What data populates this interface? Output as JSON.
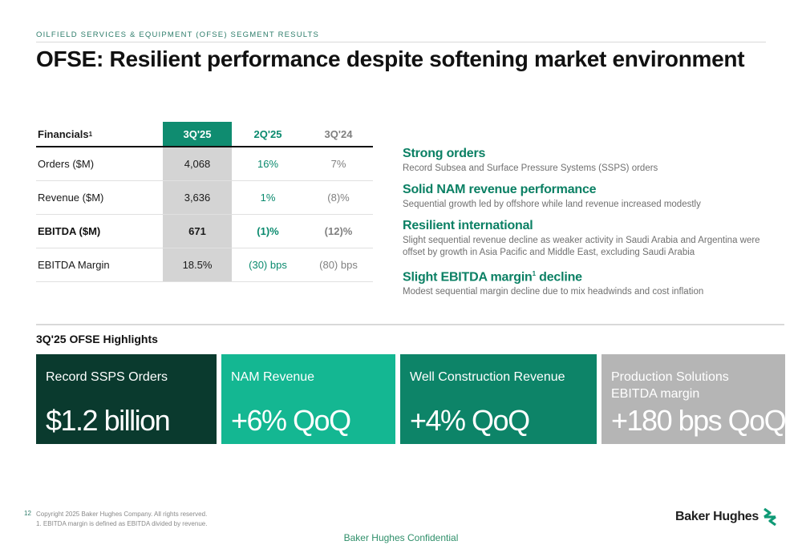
{
  "header": {
    "kicker": "OILFIELD SERVICES & EQUIPMENT (OFSE) SEGMENT RESULTS",
    "title": "OFSE: Resilient performance despite softening market environment"
  },
  "financials": {
    "header": {
      "label": "Financials",
      "label_sup": "1",
      "q1": "3Q'25",
      "q2": "2Q'25",
      "q3": "3Q'24"
    },
    "rows": [
      {
        "label": "Orders ($M)",
        "q1": "4,068",
        "q2": "16%",
        "q3": "7%"
      },
      {
        "label": "Revenue ($M)",
        "q1": "3,636",
        "q2": "1%",
        "q3": "(8)%"
      },
      {
        "label": "EBITDA ($M)",
        "q1": "671",
        "q2": "(1)%",
        "q3": "(12)%"
      },
      {
        "label": "EBITDA Margin",
        "q1": "18.5%",
        "q2": "(30) bps",
        "q3": "(80) bps"
      }
    ]
  },
  "points": [
    {
      "heading": "Strong orders",
      "body": "Record Subsea and Surface Pressure Systems (SSPS) orders"
    },
    {
      "heading": "Solid NAM revenue performance",
      "body": "Sequential growth led by offshore while land revenue increased modestly"
    },
    {
      "heading": "Resilient international",
      "body": "Slight sequential revenue decline as weaker activity in Saudi Arabia and Argentina were offset by growth in Asia Pacific and Middle East, excluding Saudi Arabia"
    },
    {
      "heading_pre": "Slight EBITDA margin",
      "heading_sup": "1",
      "heading_post": " decline",
      "body": "Modest sequential margin decline due to mix headwinds and cost inflation"
    }
  ],
  "highlights": {
    "title": "3Q'25 OFSE Highlights",
    "cards": [
      {
        "label": "Record SSPS Orders",
        "value": "$1.2 billion",
        "color": "#0a3a2e"
      },
      {
        "label": "NAM Revenue",
        "value": "+6% QoQ",
        "color": "#14b792"
      },
      {
        "label": "Well Construction Revenue",
        "value": "+4% QoQ",
        "color": "#0d8468"
      },
      {
        "label": "Production Solutions EBITDA margin",
        "value": "+180 bps QoQ",
        "color": "#b5b5b5"
      }
    ]
  },
  "footer": {
    "page_number": "12",
    "copyright": "Copyright 2025 Baker Hughes Company. All rights reserved.",
    "footnote": "1. EBITDA margin is defined as EBITDA divided by revenue.",
    "logo_text": "Baker Hughes",
    "confidential": "Baker Hughes Confidential"
  },
  "colors": {
    "accent": "#0b8064",
    "accent_light": "#14b792",
    "dark": "#0a3a2e",
    "gray": "#b5b5b5"
  }
}
